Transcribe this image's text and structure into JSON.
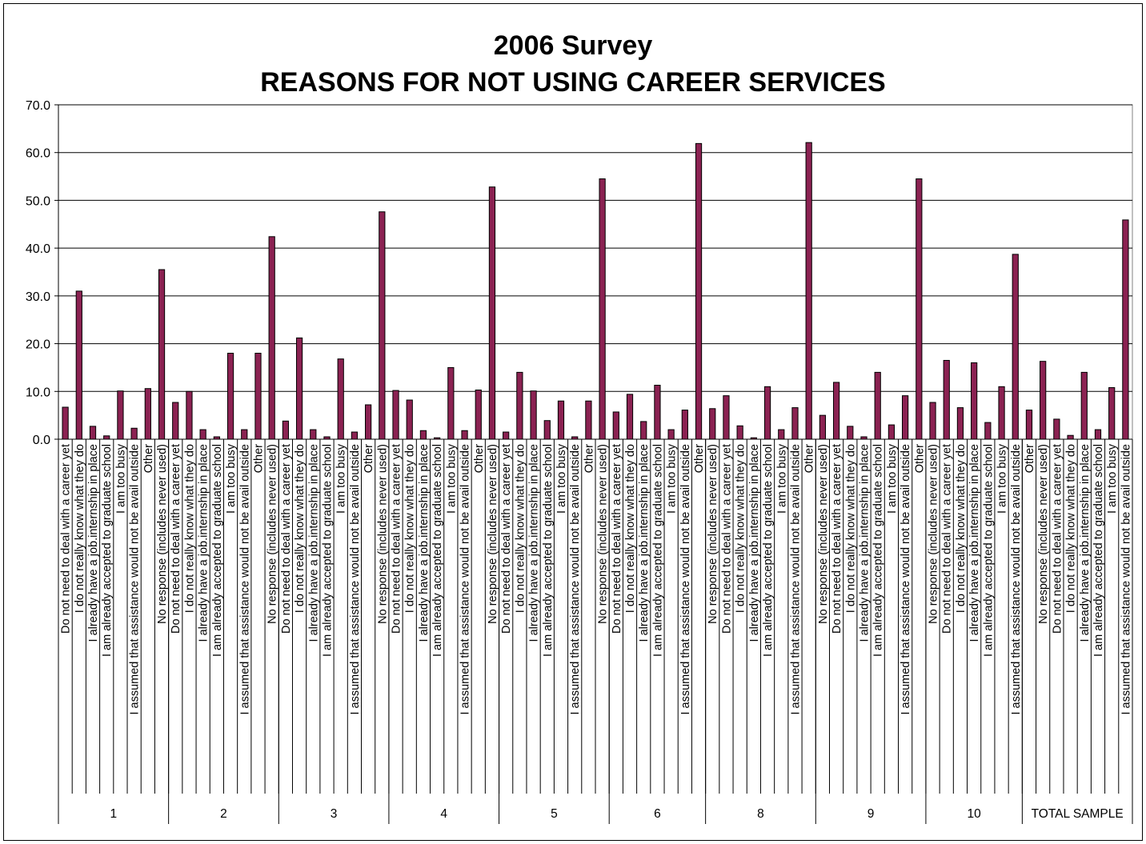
{
  "chart_data": {
    "type": "bar",
    "title": [
      "2006 Survey",
      "REASONS FOR NOT USING CAREER SERVICES"
    ],
    "xlabel": "",
    "ylabel": "",
    "ylim": [
      0,
      70
    ],
    "yticks": [
      "0.0",
      "10.0",
      "20.0",
      "30.0",
      "40.0",
      "50.0",
      "60.0",
      "70.0"
    ],
    "grid": true,
    "legend": "none",
    "bar_color": "#8b2252",
    "groups": [
      {
        "label": "1",
        "items": [
          {
            "category": "Do not need to deal with a career yet",
            "value": 6.7
          },
          {
            "category": "I do not really know what they do",
            "value": 31.0
          },
          {
            "category": "I already have a job.internship in place",
            "value": 2.7
          },
          {
            "category": "I am already accepted to graduate school",
            "value": 0.7
          },
          {
            "category": "I am too busy",
            "value": 10.1
          },
          {
            "category": "I assumed that assistance would not be avail outside",
            "value": 2.3
          },
          {
            "category": "Other",
            "value": 10.6
          },
          {
            "category": "No response (includes never used)",
            "value": 35.5
          }
        ]
      },
      {
        "label": "2",
        "items": [
          {
            "category": "Do not need to deal with a career yet",
            "value": 7.7
          },
          {
            "category": "I do not really know what they do",
            "value": 10.0
          },
          {
            "category": "I already have a job.internship in place",
            "value": 2.0
          },
          {
            "category": "I am already accepted to graduate school",
            "value": 0.5
          },
          {
            "category": "I am too busy",
            "value": 18.0
          },
          {
            "category": "I assumed that assistance would not be avail outside",
            "value": 2.0
          },
          {
            "category": "Other",
            "value": 18.0
          },
          {
            "category": "No response (includes never used)",
            "value": 42.4
          }
        ]
      },
      {
        "label": "3",
        "items": [
          {
            "category": "Do not need to deal with a career yet",
            "value": 3.8
          },
          {
            "category": "I do not really know what they do",
            "value": 21.2
          },
          {
            "category": "I already have a job.internship in place",
            "value": 2.0
          },
          {
            "category": "I am already accepted to graduate school",
            "value": 0.5
          },
          {
            "category": "I am too busy",
            "value": 16.8
          },
          {
            "category": "I assumed that assistance would not be avail outside",
            "value": 1.5
          },
          {
            "category": "Other",
            "value": 7.2
          },
          {
            "category": "No response (includes never used)",
            "value": 47.6
          }
        ]
      },
      {
        "label": "4",
        "items": [
          {
            "category": "Do not need to deal with a career yet",
            "value": 10.2
          },
          {
            "category": "I do not really know what they do",
            "value": 8.2
          },
          {
            "category": "I already have a job.internship in place",
            "value": 1.8
          },
          {
            "category": "I am already accepted to graduate school",
            "value": 0.3
          },
          {
            "category": "I am too busy",
            "value": 15.0
          },
          {
            "category": "I assumed that assistance would not be avail outside",
            "value": 1.8
          },
          {
            "category": "Other",
            "value": 10.3
          },
          {
            "category": "No response (includes never used)",
            "value": 52.8
          }
        ]
      },
      {
        "label": "5",
        "items": [
          {
            "category": "Do not need to deal with a career yet",
            "value": 1.5
          },
          {
            "category": "I do not really know what they do",
            "value": 14.0
          },
          {
            "category": "I already have a job.internship in place",
            "value": 10.1
          },
          {
            "category": "I am already accepted to graduate school",
            "value": 3.9
          },
          {
            "category": "I am too busy",
            "value": 8.0
          },
          {
            "category": "I assumed that assistance would not be avail outside",
            "value": 0.5
          },
          {
            "category": "Other",
            "value": 8.0
          },
          {
            "category": "No response (includes never used)",
            "value": 54.5
          }
        ]
      },
      {
        "label": "6",
        "items": [
          {
            "category": "Do not need to deal with a career yet",
            "value": 5.7
          },
          {
            "category": "I do not really know what they do",
            "value": 9.4
          },
          {
            "category": "I already have a job.internship in place",
            "value": 3.7
          },
          {
            "category": "I am already accepted to graduate school",
            "value": 11.3
          },
          {
            "category": "I am too busy",
            "value": 2.0
          },
          {
            "category": "I assumed that assistance would not be avail outside",
            "value": 6.1
          },
          {
            "category": "Other",
            "value": 61.9
          }
        ]
      },
      {
        "label": "8",
        "items": [
          {
            "category": "No response (includes never used)",
            "value": 6.4
          },
          {
            "category": "Do not need to deal with a career yet",
            "value": 9.1
          },
          {
            "category": "I do not really know what they do",
            "value": 2.8
          },
          {
            "category": "I already have a job.internship in place",
            "value": 0.3
          },
          {
            "category": "I am already accepted to graduate school",
            "value": 11.0
          },
          {
            "category": "I am too busy",
            "value": 2.0
          },
          {
            "category": "I assumed that assistance would not be avail outside",
            "value": 6.6
          },
          {
            "category": "Other",
            "value": 62.1
          }
        ]
      },
      {
        "label": "9",
        "items": [
          {
            "category": "No response (includes never used)",
            "value": 5.0
          },
          {
            "category": "Do not need to deal with a career yet",
            "value": 11.9
          },
          {
            "category": "I do not really know what they do",
            "value": 2.7
          },
          {
            "category": "I already have a job.internship in place",
            "value": 0.5
          },
          {
            "category": "I am already accepted to graduate school",
            "value": 14.0
          },
          {
            "category": "I am too busy",
            "value": 3.0
          },
          {
            "category": "I assumed that assistance would not be avail outside",
            "value": 9.1
          },
          {
            "category": "Other",
            "value": 54.5
          }
        ]
      },
      {
        "label": "10",
        "items": [
          {
            "category": "No response (includes never used)",
            "value": 7.7
          },
          {
            "category": "Do not need to deal with a career yet",
            "value": 16.5
          },
          {
            "category": "I do not really know what they do",
            "value": 6.6
          },
          {
            "category": "I already have a job.internship in place",
            "value": 16.0
          },
          {
            "category": "I am already accepted to graduate school",
            "value": 3.5
          },
          {
            "category": "I am too busy",
            "value": 11.0
          },
          {
            "category": "I assumed that assistance would not be avail outside",
            "value": 38.7
          }
        ]
      },
      {
        "label": "TOTAL SAMPLE",
        "items": [
          {
            "category": "Other",
            "value": 6.1
          },
          {
            "category": "No response (includes never used)",
            "value": 16.3
          },
          {
            "category": "Do not need to deal with a career yet",
            "value": 4.2
          },
          {
            "category": "I do not really know what they do",
            "value": 0.8
          },
          {
            "category": "I already have a job.internship in place",
            "value": 14.0
          },
          {
            "category": "I am already accepted to graduate school",
            "value": 2.0
          },
          {
            "category": "I am too busy",
            "value": 10.8
          },
          {
            "category": "I assumed that assistance would not be avail outside",
            "value": 45.9
          }
        ]
      }
    ]
  }
}
